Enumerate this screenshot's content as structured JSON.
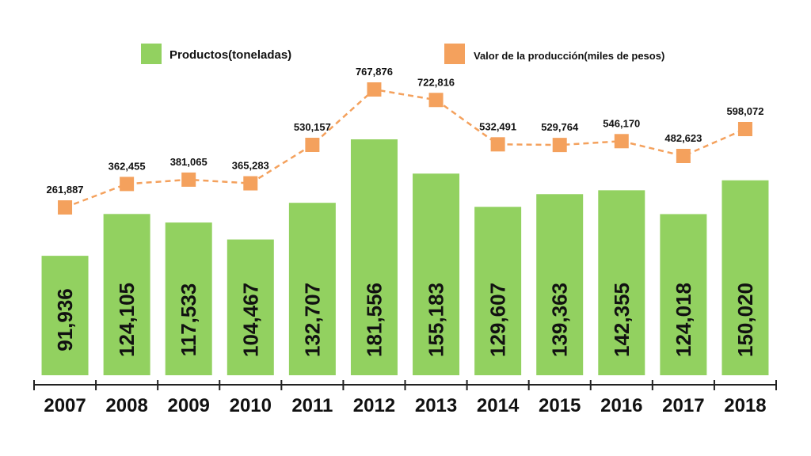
{
  "colors": {
    "bar": "#92d160",
    "line": "#f4a15d",
    "text": "#111111",
    "axis": "#222222"
  },
  "legend": {
    "bar_label": "Productos(toneladas)",
    "line_label": "Valor de la producción(miles de pesos)"
  },
  "chart_data": {
    "type": "bar",
    "categories": [
      "2007",
      "2008",
      "2009",
      "2010",
      "2011",
      "2012",
      "2013",
      "2014",
      "2015",
      "2016",
      "2017",
      "2018"
    ],
    "series": [
      {
        "name": "Productos(toneladas)",
        "type": "bar",
        "values": [
          91936,
          124105,
          117533,
          104467,
          132707,
          181556,
          155183,
          129607,
          139363,
          142355,
          124018,
          150020
        ],
        "labels": [
          "91,936",
          "124,105",
          "117,533",
          "104,467",
          "132,707",
          "181,556",
          "155,183",
          "129,607",
          "139,363",
          "142,355",
          "124,018",
          "150,020"
        ]
      },
      {
        "name": "Valor de la producción(miles de pesos)",
        "type": "line",
        "style": "dashed",
        "marker": "square",
        "values": [
          261887,
          362455,
          381065,
          365283,
          530157,
          767876,
          722816,
          532491,
          529764,
          546170,
          482623,
          598072
        ],
        "labels": [
          "261,887",
          "362,455",
          "381,065",
          "365,283",
          "530,157",
          "767,876",
          "722,816",
          "532,491",
          "529,764",
          "546,170",
          "482,623",
          "598,072"
        ]
      }
    ],
    "title": "",
    "xlabel": "",
    "ylabel": "",
    "grid": false,
    "legend_position": "top"
  }
}
